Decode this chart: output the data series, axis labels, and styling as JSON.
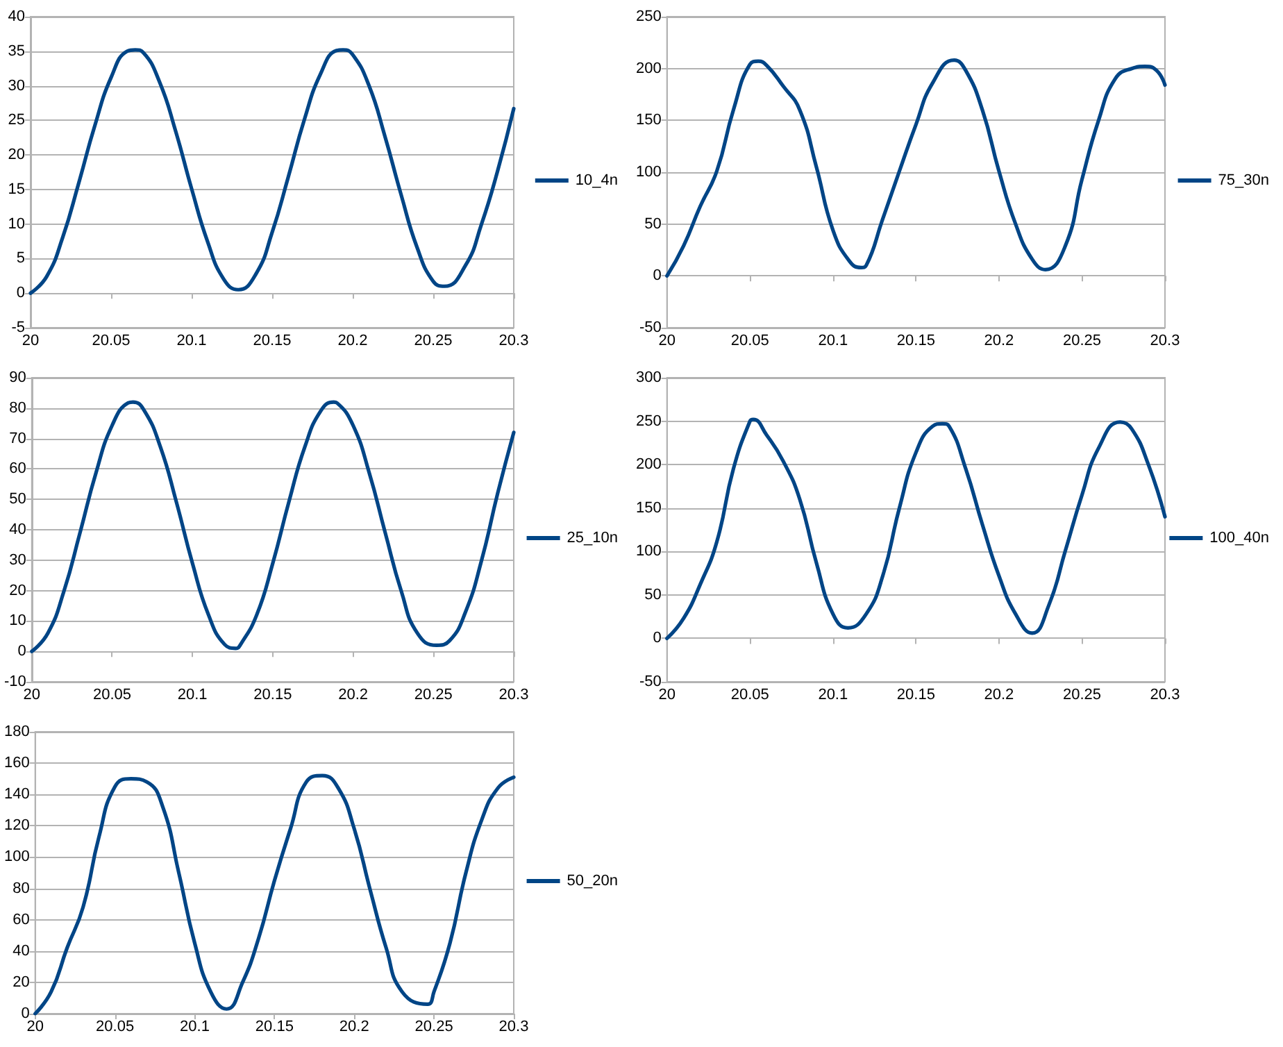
{
  "chart_data": [
    {
      "type": "line",
      "x": [
        20,
        20.01,
        20.02,
        20.03,
        20.04,
        20.05,
        20.06,
        20.065,
        20.07,
        20.08,
        20.09,
        20.1,
        20.11,
        20.12,
        20.129,
        20.14,
        20.15,
        20.16,
        20.17,
        20.18,
        20.19,
        20.194,
        20.2,
        20.21,
        20.22,
        20.23,
        20.24,
        20.25,
        20.257,
        20.27,
        20.28,
        20.29,
        20.3
      ],
      "series": [
        {
          "name": "10_4n",
          "color": "#004586",
          "values": [
            0,
            2.4,
            8.1,
            16,
            24.3,
            31.2,
            35,
            35.2,
            34.8,
            30.6,
            23.5,
            15.1,
            7.4,
            2,
            0.5,
            2.8,
            8.8,
            16.8,
            25.1,
            31.7,
            35.1,
            35.2,
            34.5,
            30.1,
            22.7,
            14.3,
            6.6,
            1.7,
            1,
            4,
            10,
            17.7,
            26.7
          ]
        }
      ],
      "xlim": [
        20,
        20.3
      ],
      "xticks": [
        20,
        20.05,
        20.1,
        20.15,
        20.2,
        20.25,
        20.3
      ],
      "ylim": [
        -5,
        40
      ],
      "yticks": [
        -5,
        0,
        5,
        10,
        15,
        20,
        25,
        30,
        35,
        40
      ],
      "grid": "y",
      "legend": "right",
      "line_style": "solid",
      "marker": "none"
    },
    {
      "type": "line",
      "x": [
        20,
        20.01,
        20.02,
        20.03,
        20.04,
        20.05,
        20.055,
        20.06,
        20.07,
        20.08,
        20.09,
        20.1,
        20.11,
        20.117,
        20.12,
        20.13,
        20.14,
        20.15,
        20.16,
        20.173,
        20.18,
        20.19,
        20.2,
        20.21,
        20.22,
        20.228,
        20.24,
        20.25,
        20.26,
        20.27,
        20.28,
        20.288,
        20.295,
        20.3
      ],
      "series": [
        {
          "name": "75_30n",
          "color": "#004586",
          "values": [
            0,
            29,
            67,
            101,
            160,
            204,
            207,
            203,
            183,
            160,
            105,
            44,
            14,
            8,
            10,
            55,
            101,
            146,
            186,
            208,
            198,
            160,
            101,
            50,
            16,
            6,
            29,
            93,
            150,
            190,
            200,
            202,
            198,
            184
          ]
        }
      ],
      "xlim": [
        20,
        20.3
      ],
      "xticks": [
        20,
        20.05,
        20.1,
        20.15,
        20.2,
        20.25,
        20.3
      ],
      "ylim": [
        -50,
        250
      ],
      "yticks": [
        -50,
        0,
        50,
        100,
        150,
        200,
        250
      ],
      "grid": "y",
      "legend": "right",
      "line_style": "solid",
      "marker": "none"
    },
    {
      "type": "line",
      "x": [
        20,
        20.01,
        20.02,
        20.03,
        20.04,
        20.05,
        20.06,
        20.063,
        20.07,
        20.08,
        20.09,
        20.1,
        20.11,
        20.12,
        20.127,
        20.13,
        20.14,
        20.15,
        20.16,
        20.17,
        20.18,
        20.188,
        20.19,
        20.2,
        20.21,
        20.22,
        20.23,
        20.24,
        20.252,
        20.26,
        20.27,
        20.28,
        20.29,
        20.3
      ],
      "series": [
        {
          "name": "25_10n",
          "color": "#004586",
          "values": [
            0,
            6,
            19.8,
            39,
            58.8,
            74.3,
            81.7,
            82,
            79.2,
            67.3,
            49.1,
            29,
            12,
            2.3,
            1,
            2.3,
            12,
            29,
            49.1,
            67.3,
            79.2,
            82,
            81.7,
            74.3,
            58.8,
            39,
            19.8,
            6,
            2,
            3.5,
            13,
            30,
            52,
            72
          ]
        }
      ],
      "xlim": [
        20,
        20.3
      ],
      "xticks": [
        20,
        20.05,
        20.1,
        20.15,
        20.2,
        20.25,
        20.3
      ],
      "ylim": [
        -10,
        90
      ],
      "yticks": [
        -10,
        0,
        10,
        20,
        30,
        40,
        50,
        60,
        70,
        80,
        90
      ],
      "grid": "y",
      "legend": "right",
      "line_style": "solid",
      "marker": "none"
    },
    {
      "type": "line",
      "x": [
        20,
        20.01,
        20.02,
        20.03,
        20.04,
        20.05,
        20.052,
        20.06,
        20.07,
        20.08,
        20.09,
        20.1,
        20.109,
        20.12,
        20.13,
        20.14,
        20.15,
        20.16,
        20.166,
        20.17,
        20.18,
        20.19,
        20.2,
        20.21,
        20.22,
        20.23,
        20.24,
        20.25,
        20.26,
        20.273,
        20.28,
        20.29,
        20.3
      ],
      "series": [
        {
          "name": "100_40n",
          "color": "#004586",
          "values": [
            0,
            23,
            62,
            111,
            195,
            250,
            252,
            234,
            204,
            160,
            87,
            28,
            12,
            28,
            72,
            150,
            214,
            244,
            247,
            244,
            195,
            131,
            72,
            28,
            6,
            38,
            101,
            165,
            219,
            249,
            241,
            200,
            140
          ]
        }
      ],
      "xlim": [
        20,
        20.3
      ],
      "xticks": [
        20,
        20.05,
        20.1,
        20.15,
        20.2,
        20.25,
        20.3
      ],
      "ylim": [
        -50,
        300
      ],
      "yticks": [
        -50,
        0,
        50,
        100,
        150,
        200,
        250,
        300
      ],
      "grid": "y",
      "legend": "right",
      "line_style": "solid",
      "marker": "none"
    },
    {
      "type": "line",
      "x": [
        20,
        20.01,
        20.02,
        20.03,
        20.04,
        20.05,
        20.06,
        20.07,
        20.08,
        20.09,
        20.1,
        20.11,
        20.12,
        20.13,
        20.14,
        20.15,
        20.16,
        20.17,
        20.18,
        20.19,
        20.2,
        20.21,
        20.22,
        20.23,
        20.246,
        20.25,
        20.26,
        20.27,
        20.28,
        20.29,
        20.3
      ],
      "series": [
        {
          "name": "50_20n",
          "color": "#004586",
          "values": [
            0,
            14,
            42,
            68,
            113,
            145,
            150,
            148,
            132,
            90,
            45,
            14,
            3,
            20,
            48,
            85,
            118,
            148,
            152,
            144,
            118,
            79,
            42,
            14,
            6,
            14,
            45,
            90,
            124,
            144,
            151
          ]
        }
      ],
      "xlim": [
        20,
        20.3
      ],
      "xticks": [
        20,
        20.05,
        20.1,
        20.15,
        20.2,
        20.25,
        20.3
      ],
      "ylim": [
        0,
        180
      ],
      "yticks": [
        0,
        20,
        40,
        60,
        80,
        100,
        120,
        140,
        160,
        180
      ],
      "grid": "y",
      "legend": "right",
      "line_style": "solid",
      "marker": "none"
    }
  ]
}
